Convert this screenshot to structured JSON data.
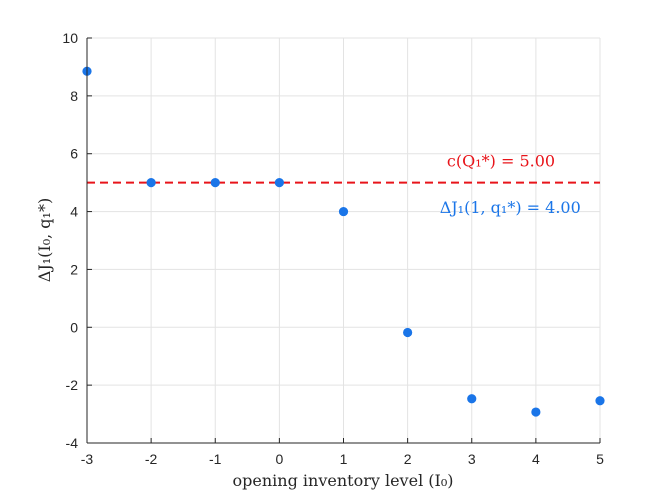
{
  "chart_data": {
    "type": "scatter",
    "title": "",
    "xlabel": "opening inventory level (I₀)",
    "ylabel": "ΔJ₁(I₀, q₁*)",
    "xlim": [
      -3,
      5
    ],
    "ylim": [
      -4,
      10
    ],
    "xticks": [
      -3,
      -2,
      -1,
      0,
      1,
      2,
      3,
      4,
      5
    ],
    "yticks": [
      -4,
      -2,
      0,
      2,
      4,
      6,
      8,
      10
    ],
    "grid": true,
    "legend": "none",
    "series": [
      {
        "x": [
          -3,
          -2,
          -1,
          0,
          1,
          2,
          3,
          4,
          5
        ],
        "y": [
          8.85,
          5.0,
          5.0,
          5.0,
          4.0,
          -0.18,
          -2.47,
          -2.93,
          -2.54
        ],
        "color": "#1a75e8",
        "marker": "circle"
      }
    ],
    "reference_line": {
      "y": 5.0,
      "style": "dashed",
      "color": "#e8141a"
    },
    "annotations": [
      {
        "text": "c(Q₁*) = 5.00",
        "color": "#e8141a",
        "x": 4.3,
        "y": 5.55
      },
      {
        "text": "ΔJ₁(1, q₁*) = 4.00",
        "color": "#1a75e8",
        "x": 2.5,
        "y": 3.95
      }
    ]
  }
}
